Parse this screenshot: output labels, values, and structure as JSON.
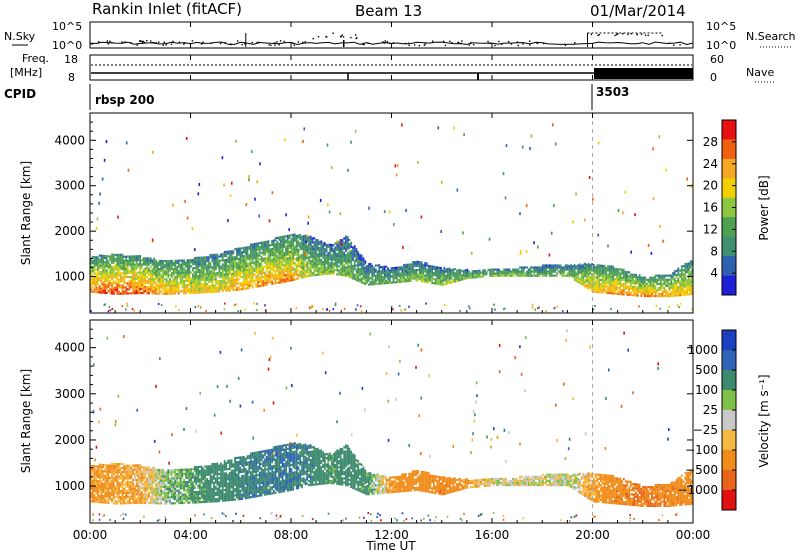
{
  "header": {
    "station": "Rankin Inlet (fitACF)",
    "beam": "Beam 13",
    "date": "01/Mar/2014"
  },
  "top_panels": {
    "nsky_label": "N.Sky",
    "nsearch_label": "N.Search",
    "noise_ticks_left": [
      "10^5",
      "10^0"
    ],
    "noise_ticks_right": [
      "10^5",
      "10^0"
    ],
    "freq_label": "Freq.",
    "freq_unit": "[MHz]",
    "freq_ticks": [
      "18",
      "8"
    ],
    "nave_label": "Nave",
    "nave_ticks": [
      "60",
      "0"
    ],
    "cpid_label": "CPID",
    "cpid_segments": [
      {
        "name": "rbsp 200",
        "start_hour": 0
      },
      {
        "name": "3503",
        "start_hour": 20
      }
    ]
  },
  "time_axis": {
    "ticks": [
      "00:00",
      "04:00",
      "08:00",
      "12:00",
      "16:00",
      "20:00",
      "00:00"
    ],
    "label": "Time UT"
  },
  "colors": {
    "power_scale": [
      "#1f1fd8",
      "#2f5fb0",
      "#3f8f70",
      "#4fa050",
      "#8cc63f",
      "#f0d000",
      "#f5a623",
      "#f06010",
      "#e81010"
    ],
    "velocity_scale": [
      "#1a3fbf",
      "#2f64b8",
      "#3d8a6e",
      "#7fc24a",
      "#c8c8c8",
      "#f5b942",
      "#f08c1a",
      "#e86418",
      "#e01010"
    ]
  },
  "chart_data": [
    {
      "type": "heatmap",
      "title": "",
      "ylabel": "Slant Range [km]",
      "xlabel": "",
      "ylim": [
        200,
        4600
      ],
      "yticks": [
        "1000",
        "2000",
        "3000",
        "4000"
      ],
      "colorbar_label": "Power [dB]",
      "colorbar_ticks": [
        "28",
        "24",
        "20",
        "16",
        "12",
        "8",
        "4"
      ],
      "band": [
        {
          "t": 0.0,
          "low": 650,
          "high": 1450,
          "intensity": 0.85
        },
        {
          "t": 1.0,
          "low": 600,
          "high": 1500,
          "intensity": 0.95
        },
        {
          "t": 2.0,
          "low": 620,
          "high": 1450,
          "intensity": 0.9
        },
        {
          "t": 3.0,
          "low": 600,
          "high": 1350,
          "intensity": 0.75
        },
        {
          "t": 4.0,
          "low": 620,
          "high": 1400,
          "intensity": 0.7
        },
        {
          "t": 5.0,
          "low": 650,
          "high": 1500,
          "intensity": 0.65
        },
        {
          "t": 6.0,
          "low": 700,
          "high": 1650,
          "intensity": 0.75
        },
        {
          "t": 7.0,
          "low": 800,
          "high": 1800,
          "intensity": 0.8
        },
        {
          "t": 8.0,
          "low": 900,
          "high": 1950,
          "intensity": 0.8
        },
        {
          "t": 8.7,
          "low": 1000,
          "high": 1900,
          "intensity": 0.55
        },
        {
          "t": 9.5,
          "low": 1050,
          "high": 1700,
          "intensity": 0.45
        },
        {
          "t": 10.2,
          "low": 1000,
          "high": 1900,
          "intensity": 0.45
        },
        {
          "t": 11.0,
          "low": 800,
          "high": 1300,
          "intensity": 0.4
        },
        {
          "t": 12.0,
          "low": 850,
          "high": 1200,
          "intensity": 0.4
        },
        {
          "t": 13.0,
          "low": 900,
          "high": 1350,
          "intensity": 0.45
        },
        {
          "t": 14.0,
          "low": 800,
          "high": 1200,
          "intensity": 0.5
        },
        {
          "t": 15.0,
          "low": 950,
          "high": 1150,
          "intensity": 0.45
        },
        {
          "t": 16.0,
          "low": 1000,
          "high": 1200,
          "intensity": 0.45
        },
        {
          "t": 17.0,
          "low": 1000,
          "high": 1200,
          "intensity": 0.45
        },
        {
          "t": 18.0,
          "low": 1000,
          "high": 1250,
          "intensity": 0.4
        },
        {
          "t": 19.0,
          "low": 1000,
          "high": 1250,
          "intensity": 0.45
        },
        {
          "t": 20.0,
          "low": 650,
          "high": 1300,
          "intensity": 0.75
        },
        {
          "t": 21.0,
          "low": 600,
          "high": 1200,
          "intensity": 0.8
        },
        {
          "t": 22.0,
          "low": 550,
          "high": 1000,
          "intensity": 0.8
        },
        {
          "t": 23.0,
          "low": 550,
          "high": 1050,
          "intensity": 0.75
        },
        {
          "t": 24.0,
          "low": 600,
          "high": 1400,
          "intensity": 0.7
        }
      ]
    },
    {
      "type": "heatmap",
      "title": "",
      "ylabel": "Slant Range [km]",
      "xlabel": "Time UT",
      "ylim": [
        200,
        4600
      ],
      "yticks": [
        "1000",
        "2000",
        "3000",
        "4000"
      ],
      "colorbar_label": "Velocity [m s⁻¹]",
      "colorbar_ticks": [
        "1000",
        "500",
        "100",
        "25",
        "−25",
        "−100",
        "−500",
        "−1000"
      ],
      "band": [
        {
          "t": 0.0,
          "low": 650,
          "high": 1450,
          "velocity": -150
        },
        {
          "t": 1.0,
          "low": 600,
          "high": 1500,
          "velocity": -120
        },
        {
          "t": 2.0,
          "low": 620,
          "high": 1450,
          "velocity": -80
        },
        {
          "t": 3.0,
          "low": 600,
          "high": 1350,
          "velocity": 60
        },
        {
          "t": 4.0,
          "low": 620,
          "high": 1400,
          "velocity": 120
        },
        {
          "t": 5.0,
          "low": 650,
          "high": 1500,
          "velocity": 200
        },
        {
          "t": 6.0,
          "low": 700,
          "high": 1650,
          "velocity": 250
        },
        {
          "t": 7.0,
          "low": 800,
          "high": 1800,
          "velocity": 280
        },
        {
          "t": 8.0,
          "low": 900,
          "high": 1950,
          "velocity": 300
        },
        {
          "t": 8.7,
          "low": 1000,
          "high": 1900,
          "velocity": 250
        },
        {
          "t": 9.5,
          "low": 1050,
          "high": 1700,
          "velocity": 150
        },
        {
          "t": 10.2,
          "low": 1000,
          "high": 1900,
          "velocity": 200
        },
        {
          "t": 11.0,
          "low": 800,
          "high": 1300,
          "velocity": 150
        },
        {
          "t": 12.0,
          "low": 850,
          "high": 1200,
          "velocity": -150
        },
        {
          "t": 13.0,
          "low": 900,
          "high": 1350,
          "velocity": -200
        },
        {
          "t": 14.0,
          "low": 800,
          "high": 1200,
          "velocity": -250
        },
        {
          "t": 15.0,
          "low": 950,
          "high": 1150,
          "velocity": -150
        },
        {
          "t": 16.0,
          "low": 1000,
          "high": 1200,
          "velocity": 0
        },
        {
          "t": 17.0,
          "low": 1000,
          "high": 1200,
          "velocity": 0
        },
        {
          "t": 18.0,
          "low": 1000,
          "high": 1250,
          "velocity": 0
        },
        {
          "t": 19.0,
          "low": 1000,
          "high": 1250,
          "velocity": 5
        },
        {
          "t": 20.0,
          "low": 650,
          "high": 1300,
          "velocity": -100
        },
        {
          "t": 21.0,
          "low": 600,
          "high": 1200,
          "velocity": -250
        },
        {
          "t": 22.0,
          "low": 550,
          "high": 1000,
          "velocity": -300
        },
        {
          "t": 23.0,
          "low": 550,
          "high": 1050,
          "velocity": -250
        },
        {
          "t": 24.0,
          "low": 600,
          "high": 1400,
          "velocity": -200
        }
      ]
    }
  ]
}
